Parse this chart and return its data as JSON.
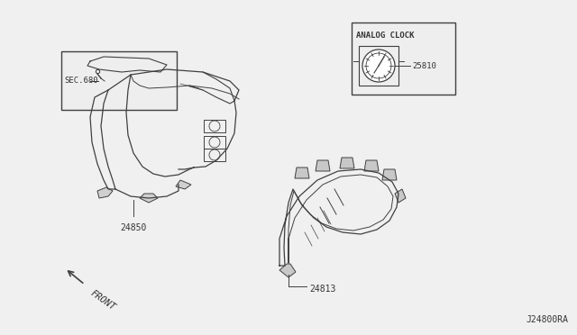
{
  "bg_color": "#f0f0f0",
  "line_color": "#404040",
  "text_color": "#333333",
  "diagram_id": "J24800RA",
  "sec_label": "SEC.680",
  "analog_clock_label": "ANALOG CLOCK",
  "front_label": "FRONT",
  "part_24850": "24850",
  "part_24813": "24813",
  "part_25810": "25810"
}
